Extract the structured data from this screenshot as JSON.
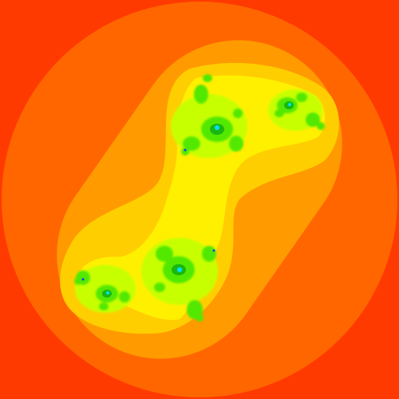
{
  "image": {
    "kind": "fractal",
    "palette": {
      "background": "#FF3A00",
      "outer_ring": "#FF6600",
      "mid_ring": "#FF9A00",
      "inner_ring": "#FFCE00",
      "core_yellow": "#FFF000",
      "lime": "#C8FF00",
      "green": "#52E800",
      "deep_green": "#18B810",
      "cyan_accent": "#00E0FF",
      "blue_accent": "#1040FF"
    }
  }
}
